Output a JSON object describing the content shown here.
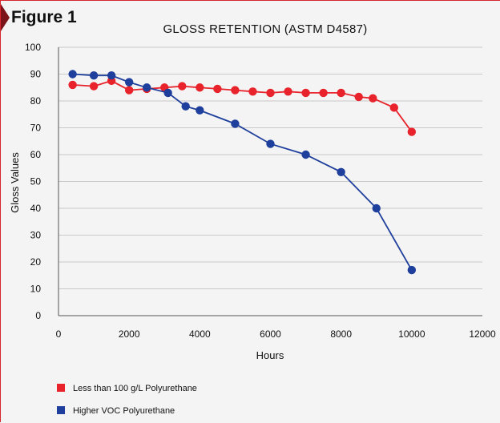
{
  "figure_label": "Figure 1",
  "chart_data": {
    "type": "line",
    "title": "GLOSS RETENTION (ASTM D4587)",
    "xlabel": "Hours",
    "ylabel": "Gloss Values",
    "xlim": [
      0,
      12000
    ],
    "ylim": [
      0,
      100
    ],
    "x_ticks": [
      0,
      2000,
      4000,
      6000,
      8000,
      10000,
      12000
    ],
    "y_ticks": [
      0,
      10,
      20,
      30,
      40,
      50,
      60,
      70,
      80,
      90,
      100
    ],
    "grid": "horizontal",
    "legend_position": "bottom-left",
    "series": [
      {
        "name": "Less than 100 g/L Polyurethane",
        "color": "#e8232b",
        "points": [
          [
            400,
            86
          ],
          [
            1000,
            85.5
          ],
          [
            1500,
            87.5
          ],
          [
            2000,
            84
          ],
          [
            2500,
            84.5
          ],
          [
            3000,
            85
          ],
          [
            3500,
            85.5
          ],
          [
            4000,
            85
          ],
          [
            4500,
            84.5
          ],
          [
            5000,
            84
          ],
          [
            5500,
            83.5
          ],
          [
            6000,
            83
          ],
          [
            6500,
            83.5
          ],
          [
            7000,
            83
          ],
          [
            7500,
            83
          ],
          [
            8000,
            83
          ],
          [
            8500,
            81.5
          ],
          [
            8900,
            81
          ],
          [
            9500,
            77.5
          ],
          [
            10000,
            68.5
          ]
        ]
      },
      {
        "name": "Higher VOC Polyurethane",
        "color": "#1f3f9c",
        "points": [
          [
            400,
            90
          ],
          [
            1000,
            89.5
          ],
          [
            1500,
            89.5
          ],
          [
            2000,
            87
          ],
          [
            2500,
            85
          ],
          [
            3100,
            83
          ],
          [
            3600,
            78
          ],
          [
            4000,
            76.5
          ],
          [
            5000,
            71.5
          ],
          [
            6000,
            64
          ],
          [
            7000,
            60
          ],
          [
            8000,
            53.5
          ],
          [
            9000,
            40
          ],
          [
            10000,
            17
          ]
        ]
      }
    ]
  }
}
